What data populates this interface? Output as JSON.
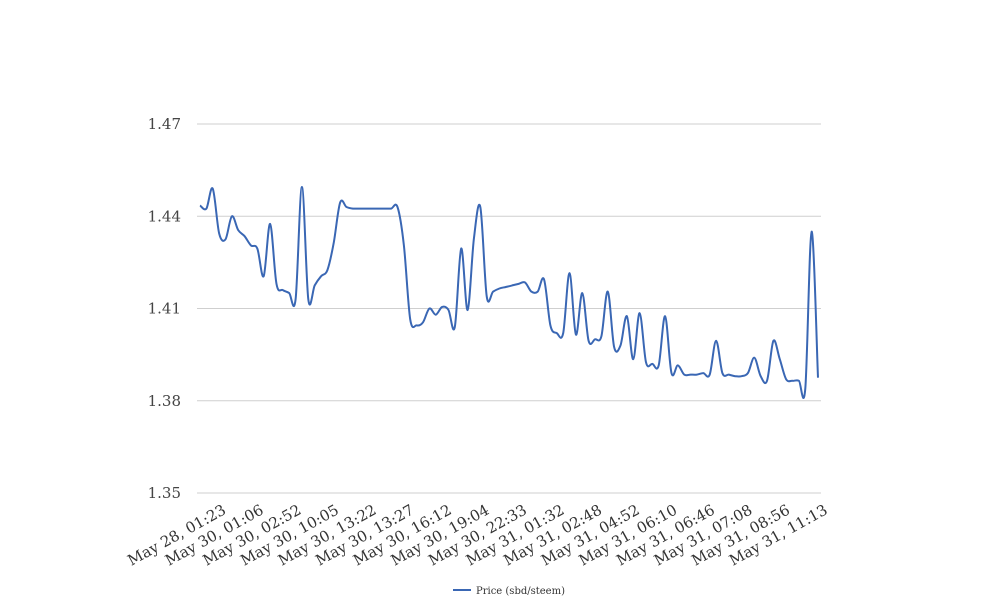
{
  "chart_data": {
    "type": "line",
    "title": "",
    "xlabel": "",
    "ylabel": "",
    "ylim": [
      1.35,
      1.47
    ],
    "yticks": [
      "1.47",
      "1.44",
      "1.41",
      "1.38",
      "1.35"
    ],
    "ytick_values": [
      1.47,
      1.44,
      1.41,
      1.38,
      1.35
    ],
    "xtick_labels": [
      "May 28, 01:23",
      "May 30, 01:06",
      "May 30, 02:52",
      "May 30, 10:05",
      "May 30, 13:22",
      "May 30, 13:27",
      "May 30, 16:12",
      "May 30, 19:04",
      "May 30, 22:33",
      "May 31, 01:32",
      "May 31, 02:48",
      "May 31, 04:52",
      "May 31, 06:10",
      "May 31, 06:46",
      "May 31, 07:08",
      "May 31, 08:56",
      "May 31, 11:13"
    ],
    "grid": true,
    "legend_position": "bottom",
    "series": [
      {
        "name": "Price (sbd/steem)",
        "color": "#3a67b4",
        "values": [
          1.4435,
          1.4425,
          1.449,
          1.4345,
          1.4325,
          1.44,
          1.4355,
          1.4335,
          1.4305,
          1.4295,
          1.4205,
          1.4375,
          1.418,
          1.416,
          1.415,
          1.413,
          1.4495,
          1.413,
          1.4175,
          1.4205,
          1.4225,
          1.4315,
          1.4445,
          1.443,
          1.4425,
          1.4425,
          1.4425,
          1.4425,
          1.4425,
          1.4425,
          1.4425,
          1.443,
          1.4305,
          1.4065,
          1.4045,
          1.4055,
          1.41,
          1.408,
          1.4105,
          1.4095,
          1.404,
          1.4295,
          1.4095,
          1.433,
          1.443,
          1.414,
          1.4155,
          1.4165,
          1.417,
          1.4175,
          1.418,
          1.4185,
          1.4155,
          1.4155,
          1.4195,
          1.4045,
          1.402,
          1.402,
          1.4215,
          1.4015,
          1.415,
          1.3995,
          1.4,
          1.401,
          1.4155,
          1.3975,
          1.398,
          1.4075,
          1.3935,
          1.4085,
          1.3925,
          1.392,
          1.3915,
          1.4075,
          1.389,
          1.3915,
          1.3885,
          1.3885,
          1.3885,
          1.389,
          1.3885,
          1.3995,
          1.389,
          1.3885,
          1.388,
          1.388,
          1.389,
          1.394,
          1.388,
          1.3865,
          1.3995,
          1.3935,
          1.387,
          1.3865,
          1.3865,
          1.384,
          1.435,
          1.3875
        ]
      }
    ]
  }
}
